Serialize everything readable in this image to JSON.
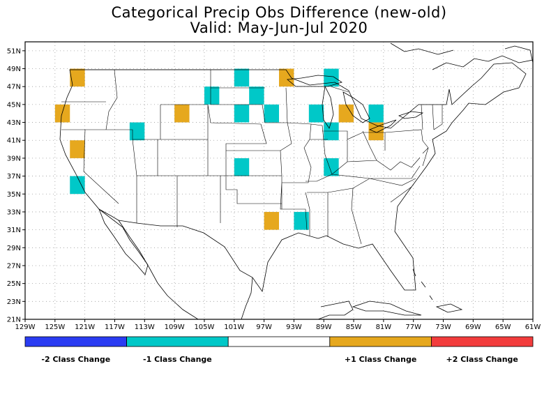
{
  "title": "Categorical Precip Obs Difference (new-old)",
  "subtitle": "Valid: May-Jun-Jul 2020",
  "map": {
    "lon_range": [
      -129,
      -61
    ],
    "lat_range": [
      21,
      52
    ],
    "lon_ticks": [
      "129W",
      "125W",
      "121W",
      "117W",
      "113W",
      "109W",
      "105W",
      "101W",
      "97W",
      "93W",
      "89W",
      "85W",
      "81W",
      "77W",
      "73W",
      "69W",
      "65W",
      "61W"
    ],
    "lat_ticks": [
      "21N",
      "23N",
      "25N",
      "27N",
      "29N",
      "31N",
      "33N",
      "35N",
      "37N",
      "39N",
      "41N",
      "43N",
      "45N",
      "47N",
      "49N",
      "51N"
    ],
    "grid": "dotted",
    "colors": {
      "-2": "#2a3cf2",
      "-1": "#00c8c8",
      "0": "#ffffff",
      "1": "#e6a81e",
      "2": "#f23c3c"
    },
    "cells": [
      {
        "lon": -122,
        "lat": 48,
        "value": 1
      },
      {
        "lon": -124,
        "lat": 44,
        "value": 1
      },
      {
        "lon": -122,
        "lat": 40,
        "value": 1
      },
      {
        "lon": -122,
        "lat": 36,
        "value": -1
      },
      {
        "lon": -114,
        "lat": 42,
        "value": -1
      },
      {
        "lon": -108,
        "lat": 44,
        "value": 1
      },
      {
        "lon": -104,
        "lat": 46,
        "value": -1
      },
      {
        "lon": -100,
        "lat": 48,
        "value": -1
      },
      {
        "lon": -98,
        "lat": 46,
        "value": -1
      },
      {
        "lon": -100,
        "lat": 44,
        "value": -1
      },
      {
        "lon": -96,
        "lat": 44,
        "value": -1
      },
      {
        "lon": -100,
        "lat": 38,
        "value": -1
      },
      {
        "lon": -94,
        "lat": 48,
        "value": 1
      },
      {
        "lon": -88,
        "lat": 48,
        "value": -1
      },
      {
        "lon": -90,
        "lat": 44,
        "value": -1
      },
      {
        "lon": -86,
        "lat": 44,
        "value": 1
      },
      {
        "lon": -82,
        "lat": 44,
        "value": -1
      },
      {
        "lon": -88,
        "lat": 42,
        "value": -1
      },
      {
        "lon": -82,
        "lat": 42,
        "value": 1
      },
      {
        "lon": -88,
        "lat": 38,
        "value": -1
      },
      {
        "lon": -96,
        "lat": 32,
        "value": 1
      },
      {
        "lon": -92,
        "lat": 32,
        "value": -1
      }
    ]
  },
  "legend": {
    "segments": [
      {
        "value": -2,
        "label": "-2 Class Change"
      },
      {
        "value": -1,
        "label": "-1 Class Change"
      },
      {
        "value": 0,
        "label": ""
      },
      {
        "value": 1,
        "label": "+1 Class Change"
      },
      {
        "value": 2,
        "label": "+2 Class Change"
      }
    ]
  }
}
